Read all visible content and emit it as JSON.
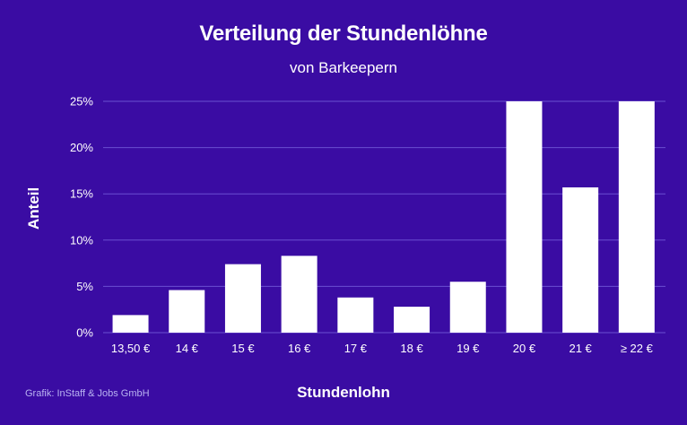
{
  "chart_data": {
    "type": "bar",
    "title": "Verteilung der Stundenlöhne",
    "subtitle": "von Barkeepern",
    "xlabel": "Stundenlohn",
    "ylabel": "Anteil",
    "categories": [
      "13,50 €",
      "14 €",
      "15 €",
      "16 €",
      "17 €",
      "18 €",
      "19 €",
      "20 €",
      "21 €",
      "≥ 22 €"
    ],
    "values": [
      1.9,
      4.6,
      7.4,
      8.3,
      3.8,
      2.8,
      5.5,
      25.0,
      15.7,
      25.0
    ],
    "ylim": [
      0,
      25
    ],
    "yticks": [
      0,
      5,
      10,
      15,
      20,
      25
    ],
    "ytick_labels": [
      "0%",
      "5%",
      "10%",
      "15%",
      "20%",
      "25%"
    ],
    "grid": true,
    "legend": "none"
  },
  "footer": {
    "credit": "Grafik: InStaff & Jobs GmbH"
  },
  "colors": {
    "background": "#3a0ca3",
    "bar": "#ffffff",
    "grid": "#6a4fd1",
    "credit": "#b9b3f2"
  }
}
